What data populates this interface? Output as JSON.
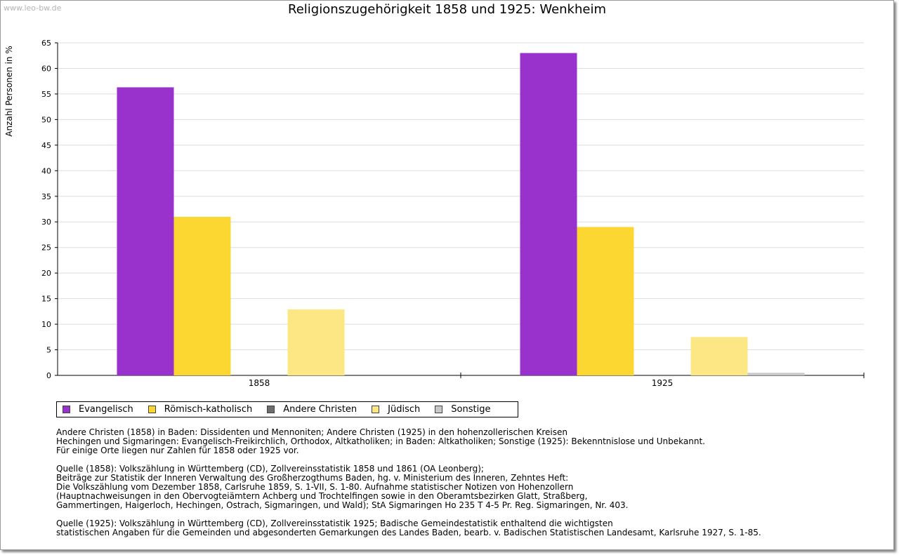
{
  "watermark": "www.leo-bw.de",
  "chart_data": {
    "type": "bar",
    "title": "Religionszugehörigkeit 1858 und 1925: Wenkheim",
    "xlabel": "",
    "ylabel": "Anzahl Personen in %",
    "ylim": [
      0,
      65
    ],
    "yticks": [
      0,
      5,
      10,
      15,
      20,
      25,
      30,
      35,
      40,
      45,
      50,
      55,
      60,
      65
    ],
    "grid": true,
    "categories": [
      "1858",
      "1925"
    ],
    "series": [
      {
        "name": "Evangelisch",
        "color": "#9932cc",
        "values": [
          56.3,
          63.0
        ]
      },
      {
        "name": "Römisch-katholisch",
        "color": "#fcd631",
        "values": [
          31.0,
          29.0
        ]
      },
      {
        "name": "Andere Christen",
        "color": "#6e6e6e",
        "values": [
          0,
          0
        ]
      },
      {
        "name": "Jüdisch",
        "color": "#fce784",
        "values": [
          12.9,
          7.5
        ]
      },
      {
        "name": "Sonstige",
        "color": "#c8c8c8",
        "values": [
          0,
          0.5
        ]
      }
    ],
    "legend_position": "bottom-left"
  },
  "notes": [
    "Andere Christen (1858) in Baden: Dissidenten und Mennoniten; Andere Christen (1925) in den hohenzollerischen Kreisen\nHechingen und Sigmaringen: Evangelisch-Freikirchlich, Orthodox, Altkatholiken; in Baden: Altkatholiken; Sonstige (1925): Bekenntnislose und Unbekannt.\nFür einige Orte liegen nur Zahlen für 1858 oder 1925 vor.",
    "Quelle (1858): Volkszählung in Württemberg (CD), Zollvereinsstatistik 1858 und 1861 (OA Leonberg);\nBeiträge zur Statistik der Inneren Verwaltung des Großherzogthums Baden, hg. v. Ministerium des Inneren, Zehntes Heft:\nDie Volkszählung vom Dezember 1858, Carlsruhe 1859, S. 1-VII, S. 1-80. Aufnahme statistischer Notizen von Hohenzollern\n(Hauptnachweisungen in den Obervogteiämtern Achberg und Trochtelfingen sowie in den Oberamtsbezirken Glatt, Straßberg,\nGammertingen, Haigerloch, Hechingen, Ostrach, Sigmaringen, und Wald); StA Sigmaringen Ho 235 T 4-5 Pr. Reg. Sigmaringen, Nr. 403.",
    "Quelle (1925): Volkszählung in Württemberg (CD), Zollvereinsstatistik 1925; Badische Gemeindestatistik enthaltend die wichtigsten\nstatistischen Angaben für die Gemeinden und abgesonderten Gemarkungen des Landes Baden, bearb. v. Badischen Statistischen Landesamt, Karlsruhe 1927, S. 1-85."
  ]
}
